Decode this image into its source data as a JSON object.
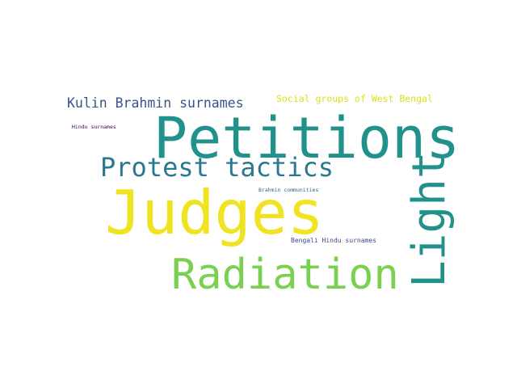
{
  "wordcloud": {
    "words": [
      {
        "text": "Judges",
        "color": "#f0e31f"
      },
      {
        "text": "Petitions",
        "color": "#21918c"
      },
      {
        "text": "Light",
        "color": "#21918c"
      },
      {
        "text": "Radiation",
        "color": "#7ad151"
      },
      {
        "text": "Protest tactics",
        "color": "#2a788e"
      },
      {
        "text": "Kulin Brahmin surnames",
        "color": "#3b528b"
      },
      {
        "text": "Social groups of West Bengal",
        "color": "#d8e219"
      },
      {
        "text": "Hindu surnames",
        "color": "#440154"
      },
      {
        "text": "Brahmin communities",
        "color": "#31688e"
      },
      {
        "text": "Bengali Hindu surnames",
        "color": "#3e4a89"
      }
    ]
  }
}
